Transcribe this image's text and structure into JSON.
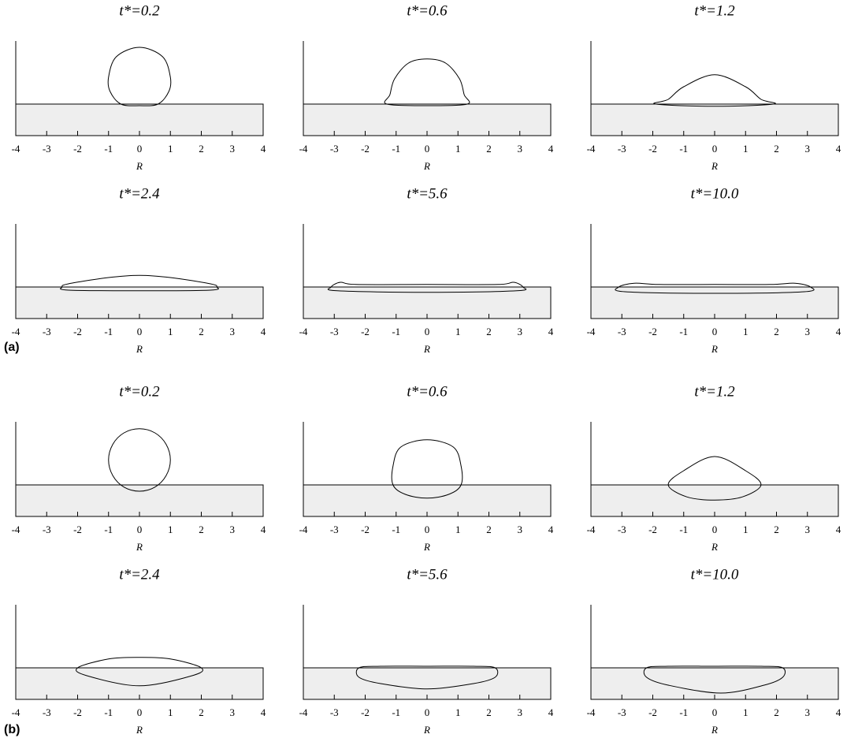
{
  "labels": [
    "(a)",
    "(b)"
  ],
  "chart_data": [
    {
      "type": "line",
      "title": "t*=0.2",
      "xlabel": "R",
      "xlim": [
        -4,
        4
      ],
      "xticks": [
        -4,
        -3,
        -2,
        -1,
        0,
        1,
        2,
        3,
        4
      ],
      "ylim": [
        -1,
        2
      ],
      "x": [
        0.6,
        0.95,
        1.0,
        0.75,
        0,
        -0.75,
        -1.0,
        -0.95,
        -0.6,
        0
      ],
      "values": [
        0,
        0.4,
        0.85,
        1.5,
        1.8,
        1.5,
        0.85,
        0.4,
        0,
        -0.05
      ]
    },
    {
      "type": "line",
      "title": "t*=0.6",
      "xlabel": "R",
      "xlim": [
        -4,
        4
      ],
      "xticks": [
        -4,
        -3,
        -2,
        -1,
        0,
        1,
        2,
        3,
        4
      ],
      "ylim": [
        -1,
        2
      ],
      "x": [
        1.3,
        1.2,
        1.05,
        0.6,
        0,
        -0.6,
        -1.05,
        -1.2,
        -1.3,
        0
      ],
      "values": [
        0,
        0.3,
        0.8,
        1.3,
        1.43,
        1.3,
        0.8,
        0.3,
        0,
        -0.05
      ]
    },
    {
      "type": "line",
      "title": "t*=1.2",
      "xlabel": "R",
      "xlim": [
        -4,
        4
      ],
      "xticks": [
        -4,
        -3,
        -2,
        -1,
        0,
        1,
        2,
        3,
        4
      ],
      "ylim": [
        -1,
        2
      ],
      "x": [
        1.9,
        1.5,
        1.0,
        0,
        -1.0,
        -1.5,
        -1.9,
        0
      ],
      "values": [
        0,
        0.15,
        0.55,
        0.93,
        0.55,
        0.15,
        0,
        -0.07
      ]
    },
    {
      "type": "line",
      "title": "t*=2.4",
      "xlabel": "R",
      "xlim": [
        -4,
        4
      ],
      "xticks": [
        -4,
        -3,
        -2,
        -1,
        0,
        1,
        2,
        3,
        4
      ],
      "ylim": [
        -1,
        2
      ],
      "x": [
        2.5,
        2.3,
        1.0,
        0,
        -1.0,
        -2.3,
        -2.5,
        -2.3,
        0,
        2.3
      ],
      "values": [
        0,
        0.1,
        0.3,
        0.37,
        0.3,
        0.1,
        0,
        -0.1,
        -0.12,
        -0.1
      ]
    },
    {
      "type": "line",
      "title": "t*=5.6",
      "xlabel": "R",
      "xlim": [
        -4,
        4
      ],
      "xticks": [
        -4,
        -3,
        -2,
        -1,
        0,
        1,
        2,
        3,
        4
      ],
      "ylim": [
        -1,
        2
      ],
      "x": [
        3.1,
        2.8,
        2.3,
        0,
        -2.3,
        -2.8,
        -3.1,
        -2.9,
        0,
        2.9
      ],
      "values": [
        0,
        0.15,
        0.08,
        0.08,
        0.08,
        0.15,
        0,
        -0.12,
        -0.17,
        -0.12
      ]
    },
    {
      "type": "line",
      "title": "t*=10.0",
      "xlabel": "R",
      "xlim": [
        -4,
        4
      ],
      "xticks": [
        -4,
        -3,
        -2,
        -1,
        0,
        1,
        2,
        3,
        4
      ],
      "ylim": [
        -1,
        2
      ],
      "x": [
        3.1,
        2.6,
        1.8,
        0,
        -1.8,
        -2.6,
        -3.1,
        -2.9,
        0,
        2.9
      ],
      "values": [
        0,
        0.12,
        0.08,
        0.08,
        0.08,
        0.12,
        0,
        -0.15,
        -0.2,
        -0.15
      ]
    },
    {
      "type": "line",
      "title": "t*=0.2",
      "xlabel": "R",
      "xlim": [
        -4,
        4
      ],
      "xticks": [
        -4,
        -3,
        -2,
        -1,
        0,
        1,
        2,
        3,
        4
      ],
      "ylim": [
        -1,
        2
      ],
      "x": [
        1.0,
        0.86,
        0.5,
        0,
        -0.5,
        -0.86,
        -1.0,
        -0.86,
        -0.5,
        0,
        0.5,
        0.86
      ],
      "values": [
        0.79,
        1.29,
        1.65,
        1.78,
        1.65,
        1.29,
        0.79,
        0.29,
        -0.07,
        -0.2,
        -0.07,
        0.29
      ]
    },
    {
      "type": "line",
      "title": "t*=0.6",
      "xlabel": "R",
      "xlim": [
        -4,
        4
      ],
      "xticks": [
        -4,
        -3,
        -2,
        -1,
        0,
        1,
        2,
        3,
        4
      ],
      "ylim": [
        -1,
        2
      ],
      "x": [
        1.1,
        1.1,
        0.85,
        0,
        -0.85,
        -1.1,
        -1.1,
        -0.7,
        0,
        0.7
      ],
      "values": [
        0,
        0.6,
        1.2,
        1.43,
        1.2,
        0.6,
        0,
        -0.3,
        -0.42,
        -0.3
      ]
    },
    {
      "type": "line",
      "title": "t*=1.2",
      "xlabel": "R",
      "xlim": [
        -4,
        4
      ],
      "xticks": [
        -4,
        -3,
        -2,
        -1,
        0,
        1,
        2,
        3,
        4
      ],
      "ylim": [
        -1,
        2
      ],
      "x": [
        1.5,
        1.0,
        0,
        -1.0,
        -1.5,
        -0.9,
        0,
        0.9
      ],
      "values": [
        0,
        0.45,
        0.9,
        0.45,
        0,
        -0.38,
        -0.48,
        -0.38
      ]
    },
    {
      "type": "line",
      "title": "t*=2.4",
      "xlabel": "R",
      "xlim": [
        -4,
        4
      ],
      "xticks": [
        -4,
        -3,
        -2,
        -1,
        0,
        1,
        2,
        3,
        4
      ],
      "ylim": [
        -1,
        2
      ],
      "x": [
        2.0,
        1.0,
        0,
        -1.0,
        -2.0,
        -1.7,
        0,
        1.7
      ],
      "values": [
        0,
        0.28,
        0.33,
        0.28,
        0,
        -0.25,
        -0.57,
        -0.25
      ]
    },
    {
      "type": "line",
      "title": "t*=5.6",
      "xlabel": "R",
      "xlim": [
        -4,
        4
      ],
      "xticks": [
        -4,
        -3,
        -2,
        -1,
        0,
        1,
        2,
        3,
        4
      ],
      "ylim": [
        -1,
        2
      ],
      "x": [
        2.2,
        1.5,
        0,
        -1.5,
        -2.2,
        -2.2,
        -1.5,
        0,
        1.5,
        2.2
      ],
      "values": [
        0,
        0.05,
        0.05,
        0.05,
        0,
        -0.3,
        -0.5,
        -0.67,
        -0.5,
        -0.3
      ]
    },
    {
      "type": "line",
      "title": "t*=10.0",
      "xlabel": "R",
      "xlim": [
        -4,
        4
      ],
      "xticks": [
        -4,
        -3,
        -2,
        -1,
        0,
        1,
        2,
        3,
        4
      ],
      "ylim": [
        -1,
        2
      ],
      "x": [
        2.2,
        1.5,
        0,
        -1.5,
        -2.2,
        -2.2,
        -1.5,
        0.2,
        1.6,
        2.2
      ],
      "values": [
        0,
        0.05,
        0.05,
        0.05,
        0,
        -0.3,
        -0.55,
        -0.8,
        -0.55,
        -0.3
      ]
    }
  ]
}
